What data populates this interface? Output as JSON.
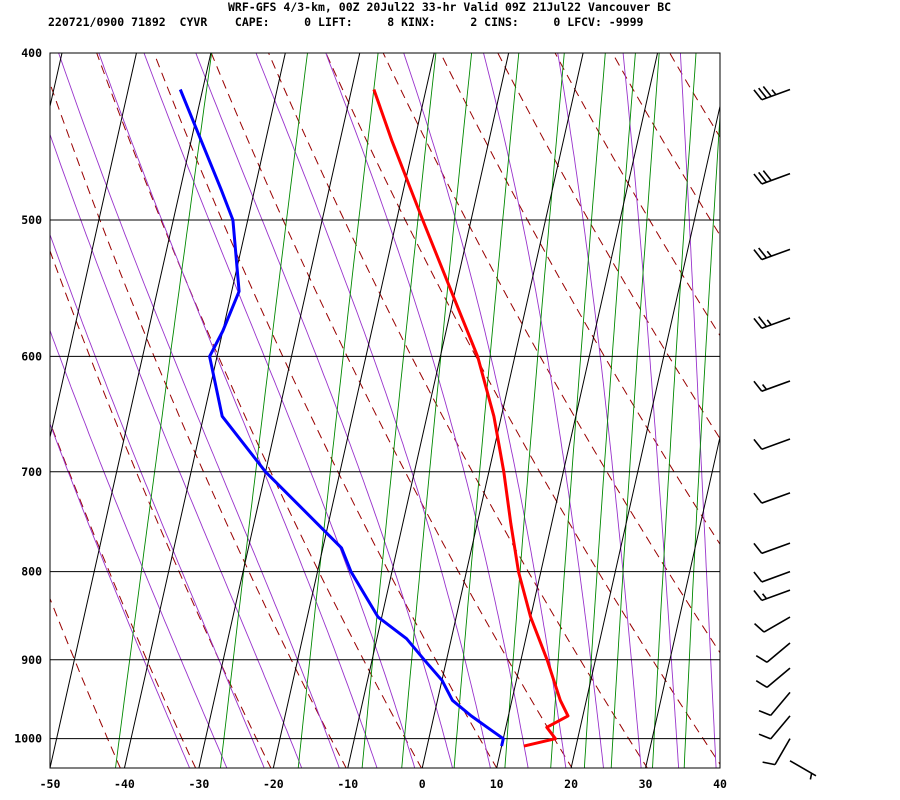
{
  "header": {
    "title": "WRF-GFS 4/3-km, 00Z 20Jul22 33-hr Valid 09Z 21Jul22 Vancouver BC",
    "stats": "220721/0900 71892  CYVR    CAPE:     0 LIFT:     8 KINX:     2 CINS:     0 LFCV: -9999"
  },
  "chart_data": {
    "type": "line",
    "title": "WRF-GFS 4/3-km, 00Z 20Jul22 33-hr Valid 09Z 21Jul22 Vancouver BC",
    "xlabel": "",
    "ylabel": "",
    "x_scale": "skew-T temperature (deg C)",
    "y_scale": "log pressure (hPa)",
    "xlim": [
      -50,
      40
    ],
    "ylim": [
      1040,
      400
    ],
    "x_ticks": [
      "-50",
      "-40",
      "-30",
      "-20",
      "-10",
      "0",
      "10",
      "20",
      "30",
      "40"
    ],
    "y_ticks": [
      "400",
      "500",
      "600",
      "700",
      "800",
      "900",
      "1000"
    ],
    "grid": true,
    "series": [
      {
        "role": "temperature",
        "color": "#ff0000",
        "points": [
          {
            "p": 1010,
            "t": 13.0
          },
          {
            "p": 1000,
            "t": 17.0
          },
          {
            "p": 985,
            "t": 15.5
          },
          {
            "p": 970,
            "t": 18.0
          },
          {
            "p": 950,
            "t": 16.5
          },
          {
            "p": 900,
            "t": 13.5
          },
          {
            "p": 850,
            "t": 10.0
          },
          {
            "p": 800,
            "t": 7.0
          },
          {
            "p": 750,
            "t": 4.5
          },
          {
            "p": 700,
            "t": 2.0
          },
          {
            "p": 650,
            "t": -1.0
          },
          {
            "p": 600,
            "t": -5.0
          },
          {
            "p": 550,
            "t": -10.5
          },
          {
            "p": 500,
            "t": -16.5
          },
          {
            "p": 450,
            "t": -23.0
          },
          {
            "p": 420,
            "t": -27.0
          }
        ]
      },
      {
        "role": "dewpoint",
        "color": "#0000ff",
        "points": [
          {
            "p": 1010,
            "t": 10.0
          },
          {
            "p": 1000,
            "t": 10.0
          },
          {
            "p": 985,
            "t": 7.5
          },
          {
            "p": 970,
            "t": 5.0
          },
          {
            "p": 950,
            "t": 2.0
          },
          {
            "p": 925,
            "t": 0.0
          },
          {
            "p": 900,
            "t": -3.0
          },
          {
            "p": 875,
            "t": -6.0
          },
          {
            "p": 850,
            "t": -10.5
          },
          {
            "p": 800,
            "t": -15.5
          },
          {
            "p": 775,
            "t": -17.5
          },
          {
            "p": 700,
            "t": -30.0
          },
          {
            "p": 650,
            "t": -37.5
          },
          {
            "p": 600,
            "t": -41.0
          },
          {
            "p": 580,
            "t": -40.0
          },
          {
            "p": 550,
            "t": -39.0
          },
          {
            "p": 500,
            "t": -42.0
          },
          {
            "p": 480,
            "t": -44.5
          },
          {
            "p": 420,
            "t": -53.0
          }
        ]
      }
    ],
    "wind_barbs": [
      {
        "p": 420,
        "direction_deg": 250,
        "speed_kt": 35
      },
      {
        "p": 470,
        "direction_deg": 250,
        "speed_kt": 30
      },
      {
        "p": 520,
        "direction_deg": 250,
        "speed_kt": 25
      },
      {
        "p": 570,
        "direction_deg": 250,
        "speed_kt": 25
      },
      {
        "p": 620,
        "direction_deg": 250,
        "speed_kt": 15
      },
      {
        "p": 670,
        "direction_deg": 250,
        "speed_kt": 10
      },
      {
        "p": 720,
        "direction_deg": 250,
        "speed_kt": 10
      },
      {
        "p": 770,
        "direction_deg": 250,
        "speed_kt": 10
      },
      {
        "p": 800,
        "direction_deg": 250,
        "speed_kt": 10
      },
      {
        "p": 820,
        "direction_deg": 250,
        "speed_kt": 15
      },
      {
        "p": 850,
        "direction_deg": 240,
        "speed_kt": 10
      },
      {
        "p": 880,
        "direction_deg": 230,
        "speed_kt": 10
      },
      {
        "p": 910,
        "direction_deg": 230,
        "speed_kt": 10
      },
      {
        "p": 940,
        "direction_deg": 220,
        "speed_kt": 10
      },
      {
        "p": 970,
        "direction_deg": 220,
        "speed_kt": 10
      },
      {
        "p": 1000,
        "direction_deg": 210,
        "speed_kt": 10
      },
      {
        "p": 1030,
        "direction_deg": 120,
        "speed_kt": 5
      }
    ],
    "colors": {
      "temperature": "#ff0000",
      "dewpoint": "#0000ff",
      "isotherm_grid": "#000000",
      "dry_adiabat": "#990000",
      "moist_adiabat": "#9933cc",
      "mixing_ratio": "#008800"
    }
  }
}
